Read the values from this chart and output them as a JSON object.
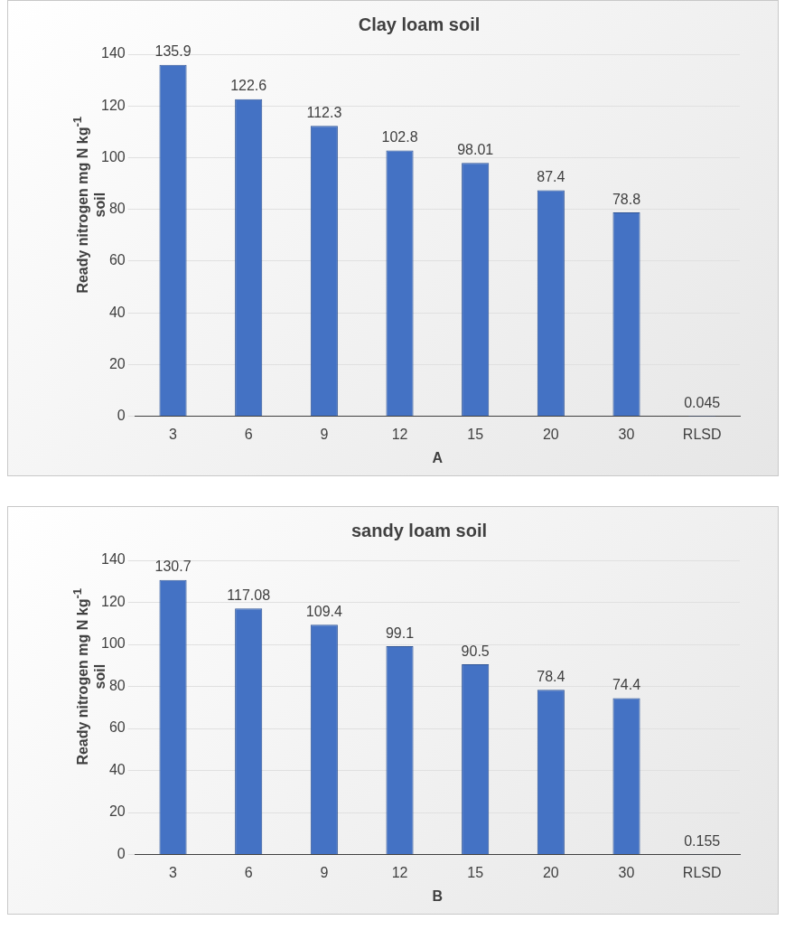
{
  "chart_data": [
    {
      "type": "bar",
      "title": "Clay loam soil",
      "xlabel": "A",
      "ylabel": "Ready nitrogen mg N kg$^{-1}$ soil",
      "categories": [
        "3",
        "6",
        "9",
        "12",
        "15",
        "20",
        "30",
        "RLSD"
      ],
      "values": [
        135.9,
        122.6,
        112.3,
        102.8,
        98.01,
        87.4,
        78.8,
        0.045
      ],
      "color": "#4472c4",
      "ylim": [
        0,
        140
      ],
      "yticks": [
        0,
        20,
        40,
        60,
        80,
        100,
        120,
        140
      ],
      "grid": "y",
      "data_labels": true
    },
    {
      "type": "bar",
      "title": "sandy loam soil",
      "xlabel": "B",
      "ylabel": "Ready nitrogen mg N kg$^{-1}$ soil",
      "categories": [
        "3",
        "6",
        "9",
        "12",
        "15",
        "20",
        "30",
        "RLSD"
      ],
      "values": [
        130.7,
        117.08,
        109.4,
        99.1,
        90.5,
        78.4,
        74.4,
        0.155
      ],
      "color": "#4472c4",
      "ylim": [
        0,
        140
      ],
      "yticks": [
        0,
        20,
        40,
        60,
        80,
        100,
        120,
        140
      ],
      "grid": "y",
      "data_labels": true
    }
  ]
}
